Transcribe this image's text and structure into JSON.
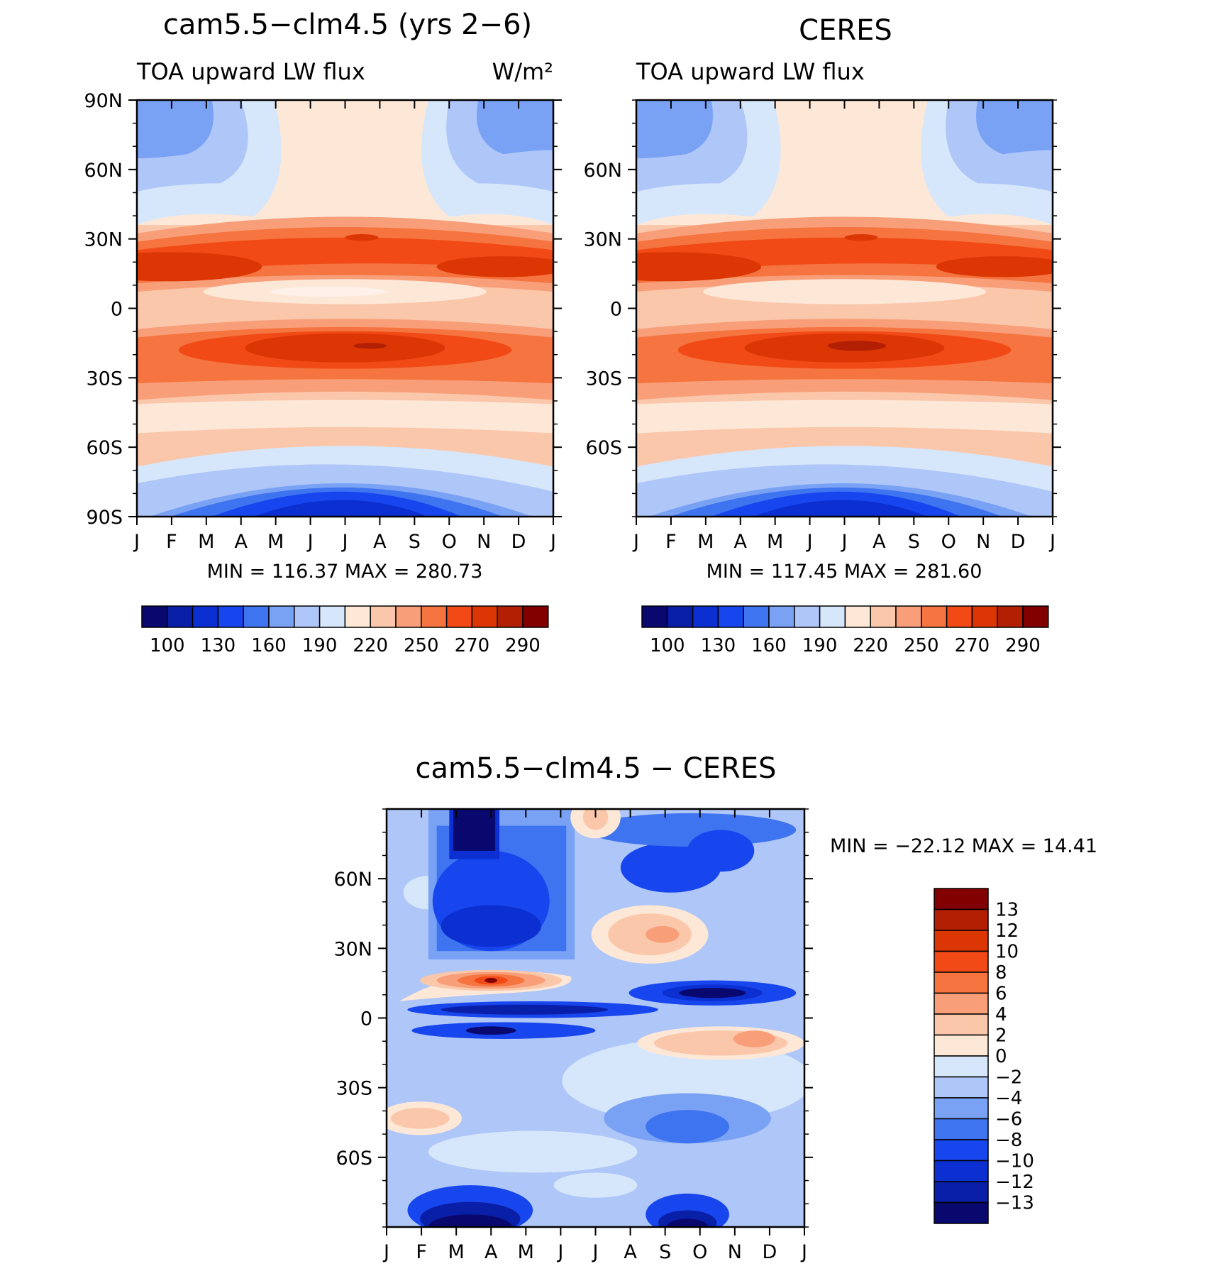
{
  "colors": {
    "abs": [
      "#08086e",
      "#0a1fa8",
      "#0b2fd0",
      "#1846ee",
      "#3f74f0",
      "#7aa2f4",
      "#afc6f8",
      "#d6e6fb",
      "#fde8d8",
      "#fbc7aa",
      "#f89f7a",
      "#f5743f",
      "#f14a16",
      "#dc3605",
      "#b21f03",
      "#820000"
    ],
    "diff": [
      "#08086e",
      "#0a1fa8",
      "#0b2fd0",
      "#1846ee",
      "#3f74f0",
      "#7aa2f4",
      "#afc6f8",
      "#d6e6fb",
      "#fde8d8",
      "#fbc7aa",
      "#f89f7a",
      "#f5743f",
      "#f14a16",
      "#dc3605",
      "#b21f03",
      "#820000"
    ]
  },
  "chart_data": [
    {
      "type": "heatmap",
      "title": "cam5.5−clm4.5 (yrs 2−6)",
      "subtitle_left": "TOA upward LW flux",
      "subtitle_right": "W/m²",
      "x_ticks": [
        "J",
        "F",
        "M",
        "A",
        "M",
        "J",
        "J",
        "A",
        "S",
        "O",
        "N",
        "D",
        "J"
      ],
      "y_ticks": [
        "90N",
        "60N",
        "30N",
        "0",
        "30S",
        "60S",
        "90S"
      ],
      "stats": "MIN = 116.37 MAX = 280.73",
      "min": 116.37,
      "max": 280.73,
      "colorbar_labels": [
        "100",
        "130",
        "160",
        "190",
        "220",
        "250",
        "270",
        "290"
      ],
      "grid": false
    },
    {
      "type": "heatmap",
      "title": "CERES",
      "subtitle_left": "TOA upward LW flux",
      "x_ticks": [
        "J",
        "F",
        "M",
        "A",
        "M",
        "J",
        "J",
        "A",
        "S",
        "O",
        "N",
        "D",
        "J"
      ],
      "y_ticks": [
        "60N",
        "30N",
        "0",
        "30S",
        "60S"
      ],
      "stats": "MIN = 117.45 MAX = 281.60",
      "min": 117.45,
      "max": 281.6,
      "colorbar_labels": [
        "100",
        "130",
        "160",
        "190",
        "220",
        "250",
        "270",
        "290"
      ],
      "grid": false
    },
    {
      "type": "heatmap",
      "title": "cam5.5−clm4.5 − CERES",
      "x_ticks": [
        "J",
        "F",
        "M",
        "A",
        "M",
        "J",
        "J",
        "A",
        "S",
        "O",
        "N",
        "D",
        "J"
      ],
      "y_ticks": [
        "60N",
        "30N",
        "0",
        "30S",
        "60S"
      ],
      "stats": "MIN = −22.12 MAX =   14.41",
      "min": -22.12,
      "max": 14.41,
      "colorbar_labels": [
        "13",
        "12",
        "10",
        "8",
        "6",
        "4",
        "2",
        "0",
        "−2",
        "−4",
        "−6",
        "−8",
        "−10",
        "−12",
        "−13"
      ],
      "grid": false
    }
  ]
}
